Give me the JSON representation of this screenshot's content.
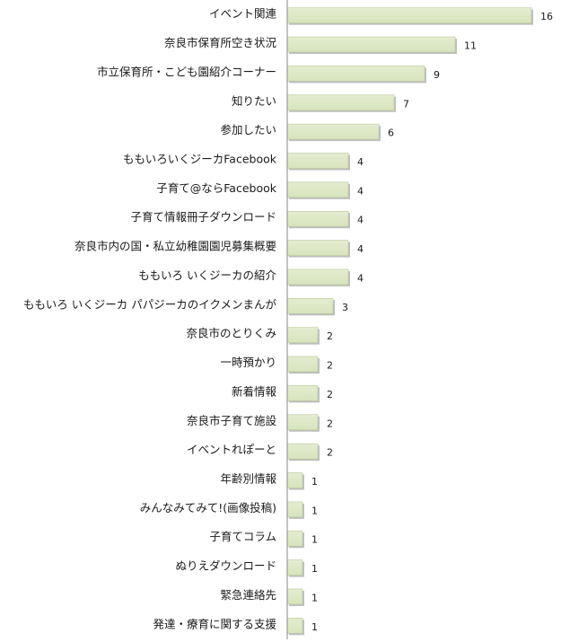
{
  "chart_data": {
    "type": "bar",
    "orientation": "horizontal",
    "categories": [
      "イベント関連",
      "奈良市保育所空き状況",
      "市立保育所・こども園紹介コーナー",
      "知りたい",
      "参加したい",
      "ももいろいくジーカFacebook",
      "子育て@ならFacebook",
      "子育て情報冊子ダウンロード",
      "奈良市内の国・私立幼稚園園児募集概要",
      "ももいろ いくジーカの紹介",
      "ももいろ いくジーカ パパジーカのイクメンまんが",
      "奈良市のとりくみ",
      "一時預かり",
      "新着情報",
      "奈良市子育て施設",
      "イベントれぽーと",
      "年齢別情報",
      "みんなみてみて!(画像投稿)",
      "子育てコラム",
      "ぬりえダウンロード",
      "緊急連絡先",
      "発達・療育に関する支援"
    ],
    "values": [
      16,
      11,
      9,
      7,
      6,
      4,
      4,
      4,
      4,
      4,
      3,
      2,
      2,
      2,
      2,
      2,
      1,
      1,
      1,
      1,
      1,
      1
    ],
    "xlim": [
      0,
      16
    ],
    "grid": false,
    "legend": "none",
    "colors": {
      "bar_fill": "#d7e4bd",
      "bar_stroke": "#b9c99a",
      "bar_shadow": "#bfbfbf",
      "axis": "#888888"
    }
  }
}
